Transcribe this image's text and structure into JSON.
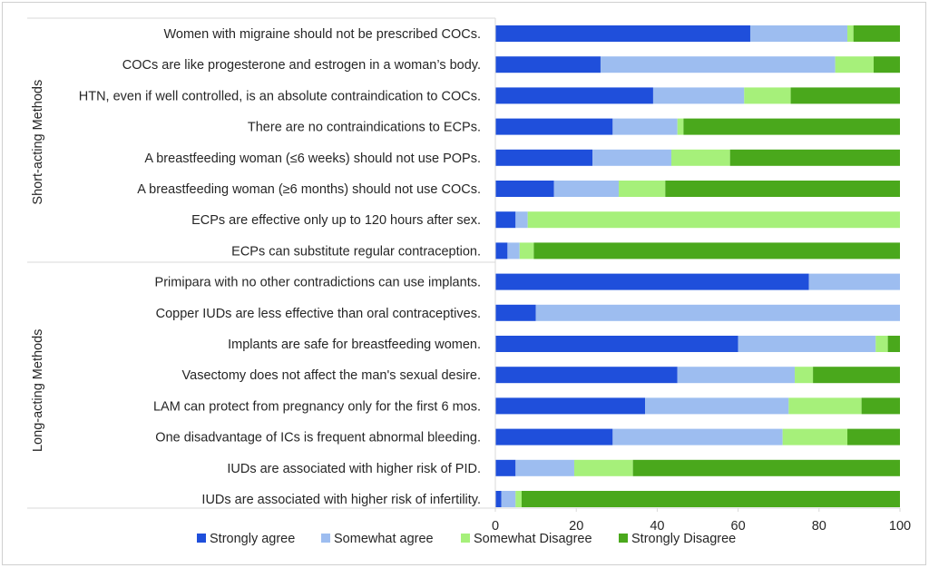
{
  "chart_data": {
    "type": "bar",
    "orientation": "horizontal",
    "stacked": true,
    "groups": [
      {
        "name": "Short-acting Methods",
        "start": 0,
        "end": 7
      },
      {
        "name": "Long-acting Methods",
        "start": 8,
        "end": 15
      }
    ],
    "categories": [
      "Women with migraine should not be prescribed COCs.",
      "COCs are like progesterone and estrogen in a woman’s body.",
      "HTN, even if well controlled, is an absolute contraindication to COCs.",
      "There are no contraindications to ECPs.",
      "A breastfeeding woman (≤6 weeks) should not use POPs.",
      "A breastfeeding woman (≥6 months) should not use COCs.",
      "ECPs are effective only up to 120 hours after sex.",
      "ECPs can substitute regular contraception.",
      "Primipara with no other contradictions can use implants.",
      "Copper IUDs are less effective than oral contraceptives.",
      "Implants are safe for breastfeeding women.",
      "Vasectomy does not affect the man's sexual desire.",
      "LAM can protect from pregnancy only for the first 6 mos.",
      "One disadvantage of ICs is frequent abnormal bleeding.",
      "IUDs are associated with higher risk of PID.",
      "IUDs are associated with higher risk of infertility."
    ],
    "series": [
      {
        "name": "Strongly agree",
        "color": "#1f4fdb",
        "values": [
          63,
          26,
          39,
          29,
          24,
          14.5,
          5,
          3,
          77.5,
          10,
          60,
          45,
          37,
          29,
          5,
          1.5
        ]
      },
      {
        "name": "Somewhat agree",
        "color": "#9dbdf0",
        "values": [
          24,
          58,
          22.5,
          16,
          19.5,
          16,
          3,
          3,
          22.5,
          90,
          34,
          29,
          35.5,
          42,
          14.5,
          3.5
        ]
      },
      {
        "name": "Somewhat Disagree",
        "color": "#a6f07a",
        "values": [
          1.5,
          9.5,
          11.5,
          1.5,
          14.5,
          11.5,
          92,
          3.5,
          0,
          0,
          3,
          4.5,
          18,
          16,
          14.5,
          1.5
        ]
      },
      {
        "name": "Strongly Disagree",
        "color": "#4aa81c",
        "values": [
          11.5,
          6.5,
          27,
          53.5,
          42,
          58,
          0,
          90.5,
          0,
          0,
          3,
          21.5,
          9.5,
          13,
          66,
          93.5
        ]
      }
    ],
    "xlim": [
      0,
      100
    ],
    "xticks": [
      "0",
      "20",
      "40",
      "60",
      "80",
      "100"
    ],
    "legend_position": "bottom",
    "gridlines": false
  }
}
